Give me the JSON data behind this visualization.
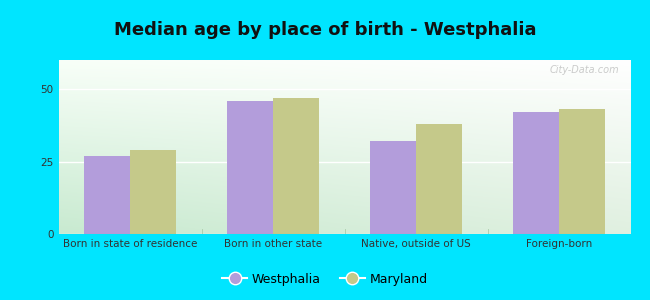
{
  "title": "Median age by place of birth - Westphalia",
  "categories": [
    "Born in state of residence",
    "Born in other state",
    "Native, outside of US",
    "Foreign-born"
  ],
  "westphalia_values": [
    27,
    46,
    32,
    42
  ],
  "maryland_values": [
    29,
    47,
    38,
    43
  ],
  "bar_color_westphalia": "#b39ddb",
  "bar_color_maryland": "#c5c98a",
  "ylim": [
    0,
    60
  ],
  "yticks": [
    0,
    25,
    50
  ],
  "background_outer": "#00e5ff",
  "grad_color_topleft": "#e8f5e9",
  "grad_color_topright": "#f8fff8",
  "grad_color_bottom": "#c8ead0",
  "grid_color": "#ffffff",
  "title_fontsize": 13,
  "tick_fontsize": 7.5,
  "legend_fontsize": 9,
  "bar_width": 0.32,
  "watermark_text": "City-Data.com",
  "separator_color": "#aaccaa",
  "axis_line_color": "#99bb99"
}
